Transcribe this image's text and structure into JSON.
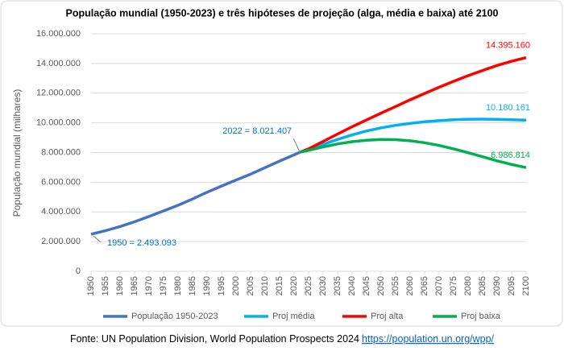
{
  "chart_data": {
    "type": "line",
    "title": "População mundial (1950-2023) e três hipóteses de projeção (alga, média e baixa) até 2100",
    "y_label": "População mundial (milhares)",
    "source": "Fonte: UN Population Division, World Population Prospects 2024",
    "source_link": "https://population.un.org/wpp/",
    "annotations": [
      "1950 = 2.493.093",
      "2022 = 8.021.407"
    ],
    "x": [
      1950,
      1955,
      1960,
      1965,
      1970,
      1975,
      1980,
      1985,
      1990,
      1995,
      2000,
      2005,
      2010,
      2015,
      2020,
      2022,
      2025,
      2030,
      2035,
      2040,
      2045,
      2050,
      2055,
      2060,
      2065,
      2070,
      2075,
      2080,
      2085,
      2090,
      2095,
      2100
    ],
    "xlim": [
      1950,
      2100
    ],
    "xticks": [
      1950,
      1955,
      1960,
      1965,
      1970,
      1975,
      1980,
      1985,
      1990,
      1995,
      2000,
      2005,
      2010,
      2015,
      2020,
      2025,
      2030,
      2035,
      2040,
      2045,
      2050,
      2055,
      2060,
      2065,
      2070,
      2075,
      2080,
      2085,
      2090,
      2095,
      2100
    ],
    "ylim": [
      0,
      16000000
    ],
    "yticks": [
      0,
      {
        "value": 2000000,
        "label": "2.000.000"
      },
      {
        "value": 4000000,
        "label": "4.000.000"
      },
      {
        "value": 6000000,
        "label": "6.000.000"
      },
      {
        "value": 8000000,
        "label": "8.000.000"
      },
      {
        "value": 10000000,
        "label": "10.000.000"
      },
      {
        "value": 12000000,
        "label": "12.000.000"
      },
      {
        "value": 14000000,
        "label": "14.000.000"
      },
      {
        "value": 16000000,
        "label": "16.000.000"
      }
    ],
    "grid": true,
    "legend": "bottom",
    "series": [
      {
        "name": "População 1950-2023",
        "color": "#4472c4",
        "values": [
          2493093,
          2740000,
          3015000,
          3337000,
          3695000,
          4070000,
          4447000,
          4870000,
          5327000,
          5744000,
          6149000,
          6542000,
          6985000,
          7426000,
          7841000,
          8021407,
          null,
          null,
          null,
          null,
          null,
          null,
          null,
          null,
          null,
          null,
          null,
          null,
          null,
          null,
          null,
          null
        ]
      },
      {
        "name": "Proj média",
        "color": "#00b0f0",
        "values": [
          null,
          null,
          null,
          null,
          null,
          null,
          null,
          null,
          null,
          null,
          null,
          null,
          null,
          null,
          null,
          8021407,
          8162000,
          8546000,
          8885000,
          9188000,
          9453000,
          9664000,
          9834000,
          9962000,
          10070000,
          10150000,
          10210000,
          10245000,
          10250000,
          10240000,
          10210000,
          10180161
        ],
        "value_labels": [
          null,
          null,
          null,
          null,
          null,
          null,
          null,
          null,
          null,
          null,
          null,
          null,
          null,
          null,
          null,
          null,
          null,
          null,
          null,
          null,
          null,
          null,
          null,
          null,
          null,
          null,
          null,
          null,
          null,
          null,
          null,
          "10.180.161"
        ]
      },
      {
        "name": "Proj alta",
        "color": "#ff0000",
        "values": [
          null,
          null,
          null,
          null,
          null,
          null,
          null,
          null,
          null,
          null,
          null,
          null,
          null,
          null,
          null,
          8021407,
          8250000,
          8750000,
          9250000,
          9740000,
          10200000,
          10660000,
          11100000,
          11550000,
          11980000,
          12400000,
          12800000,
          13180000,
          13530000,
          13870000,
          14150000,
          14395160
        ],
        "value_labels": [
          null,
          null,
          null,
          null,
          null,
          null,
          null,
          null,
          null,
          null,
          null,
          null,
          null,
          null,
          null,
          null,
          null,
          null,
          null,
          null,
          null,
          null,
          null,
          null,
          null,
          null,
          null,
          null,
          null,
          null,
          null,
          "14.395.160"
        ]
      },
      {
        "name": "Proj baixa",
        "color": "#00b050",
        "values": [
          null,
          null,
          null,
          null,
          null,
          null,
          null,
          null,
          null,
          null,
          null,
          null,
          null,
          null,
          null,
          8021407,
          8150000,
          8380000,
          8580000,
          8730000,
          8830000,
          8880000,
          8870000,
          8790000,
          8660000,
          8480000,
          8250000,
          7990000,
          7720000,
          7440000,
          7200000,
          6986814
        ],
        "value_labels": [
          null,
          null,
          null,
          null,
          null,
          null,
          null,
          null,
          null,
          null,
          null,
          null,
          null,
          null,
          null,
          null,
          null,
          null,
          null,
          null,
          null,
          null,
          null,
          null,
          null,
          null,
          null,
          null,
          null,
          null,
          null,
          "6.986.814"
        ]
      }
    ]
  }
}
